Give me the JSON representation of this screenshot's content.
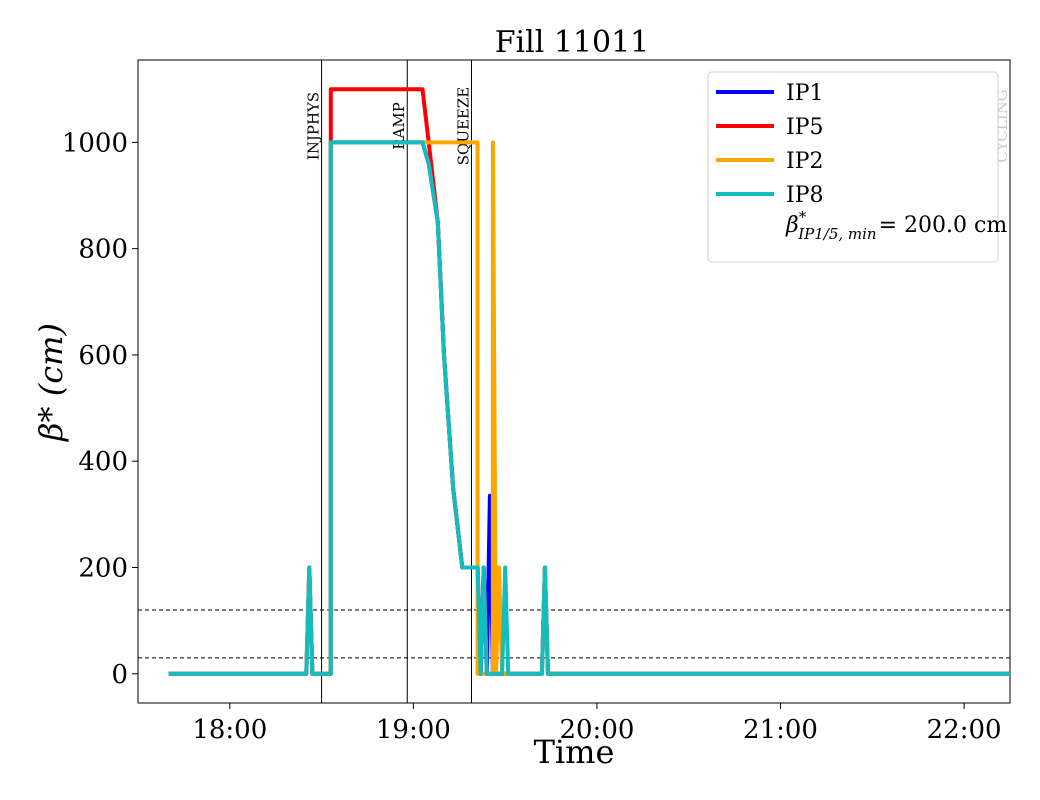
{
  "chart_data": {
    "type": "line",
    "title": "Fill 11011",
    "xlabel": "Time",
    "ylabel": "β* (cm)",
    "xlim": [
      "17:30",
      "22:15"
    ],
    "ylim": [
      -55,
      1155
    ],
    "xticks": [
      "18:00",
      "19:00",
      "20:00",
      "21:00",
      "22:00"
    ],
    "yticks": [
      0,
      200,
      400,
      600,
      800,
      1000
    ],
    "grid": false,
    "legend_position": "top-right",
    "horizontal_lines": [
      120,
      30
    ],
    "phase_markers": [
      {
        "label": "INJPHYS",
        "time": "18:30",
        "label_color": "#000000"
      },
      {
        "label": "RAMP",
        "time": "18:58",
        "label_color": "#000000"
      },
      {
        "label": "SQUEEZE",
        "time": "19:19",
        "label_color": "#000000"
      },
      {
        "label": "CYCLING",
        "time": "22:15",
        "label_color": "#cccccc"
      }
    ],
    "legend_extra": {
      "prefix": "β",
      "sup": "*",
      "sub": "IP1/5, min",
      "value": "= 200.0 cm"
    },
    "series": [
      {
        "name": "IP1",
        "color": "#0000ff",
        "points": [
          [
            "17:40",
            0
          ],
          [
            "18:25",
            0
          ],
          [
            "18:26",
            200
          ],
          [
            "18:27",
            0
          ],
          [
            "18:33",
            0
          ],
          [
            "18:33",
            1000
          ],
          [
            "19:03",
            1000
          ],
          [
            "19:05",
            960
          ],
          [
            "19:08",
            850
          ],
          [
            "19:10",
            600
          ],
          [
            "19:13",
            350
          ],
          [
            "19:16",
            200
          ],
          [
            "19:21",
            200
          ],
          [
            "19:22",
            0
          ],
          [
            "19:23",
            200
          ],
          [
            "19:24",
            0
          ],
          [
            "19:25",
            335
          ],
          [
            "19:26",
            0
          ],
          [
            "19:42",
            0
          ],
          [
            "19:43",
            200
          ],
          [
            "19:44",
            0
          ],
          [
            "22:15",
            0
          ]
        ]
      },
      {
        "name": "IP5",
        "color": "#ff0000",
        "points": [
          [
            "17:40",
            0
          ],
          [
            "18:25",
            0
          ],
          [
            "18:26",
            200
          ],
          [
            "18:27",
            0
          ],
          [
            "18:33",
            0
          ],
          [
            "18:33",
            1100
          ],
          [
            "19:03",
            1100
          ],
          [
            "19:05",
            1000
          ],
          [
            "19:08",
            850
          ],
          [
            "19:10",
            600
          ],
          [
            "19:13",
            350
          ],
          [
            "19:16",
            200
          ],
          [
            "19:21",
            200
          ],
          [
            "19:22",
            0
          ],
          [
            "19:23",
            200
          ],
          [
            "19:24",
            0
          ],
          [
            "19:42",
            0
          ],
          [
            "19:43",
            200
          ],
          [
            "19:44",
            0
          ],
          [
            "22:15",
            0
          ]
        ]
      },
      {
        "name": "IP2",
        "color": "#ffa500",
        "points": [
          [
            "17:40",
            0
          ],
          [
            "18:25",
            0
          ],
          [
            "18:26",
            200
          ],
          [
            "18:27",
            0
          ],
          [
            "18:33",
            0
          ],
          [
            "18:33",
            1000
          ],
          [
            "19:03",
            1000
          ],
          [
            "19:21",
            1000
          ],
          [
            "19:21",
            0
          ],
          [
            "19:26",
            0
          ],
          [
            "19:26",
            1000
          ],
          [
            "19:27",
            0
          ],
          [
            "19:28",
            200
          ],
          [
            "19:29",
            0
          ],
          [
            "19:42",
            0
          ],
          [
            "19:43",
            200
          ],
          [
            "19:44",
            0
          ],
          [
            "22:15",
            0
          ]
        ]
      },
      {
        "name": "IP8",
        "color": "#13bdbd",
        "points": [
          [
            "17:40",
            0
          ],
          [
            "18:25",
            0
          ],
          [
            "18:26",
            200
          ],
          [
            "18:27",
            0
          ],
          [
            "18:33",
            0
          ],
          [
            "18:33",
            1000
          ],
          [
            "19:03",
            1000
          ],
          [
            "19:05",
            960
          ],
          [
            "19:08",
            850
          ],
          [
            "19:10",
            600
          ],
          [
            "19:13",
            350
          ],
          [
            "19:16",
            200
          ],
          [
            "19:21",
            200
          ],
          [
            "19:22",
            0
          ],
          [
            "19:23",
            200
          ],
          [
            "19:24",
            0
          ],
          [
            "19:29",
            0
          ],
          [
            "19:30",
            200
          ],
          [
            "19:31",
            0
          ],
          [
            "19:42",
            0
          ],
          [
            "19:43",
            200
          ],
          [
            "19:44",
            0
          ],
          [
            "22:15",
            0
          ]
        ]
      }
    ]
  }
}
